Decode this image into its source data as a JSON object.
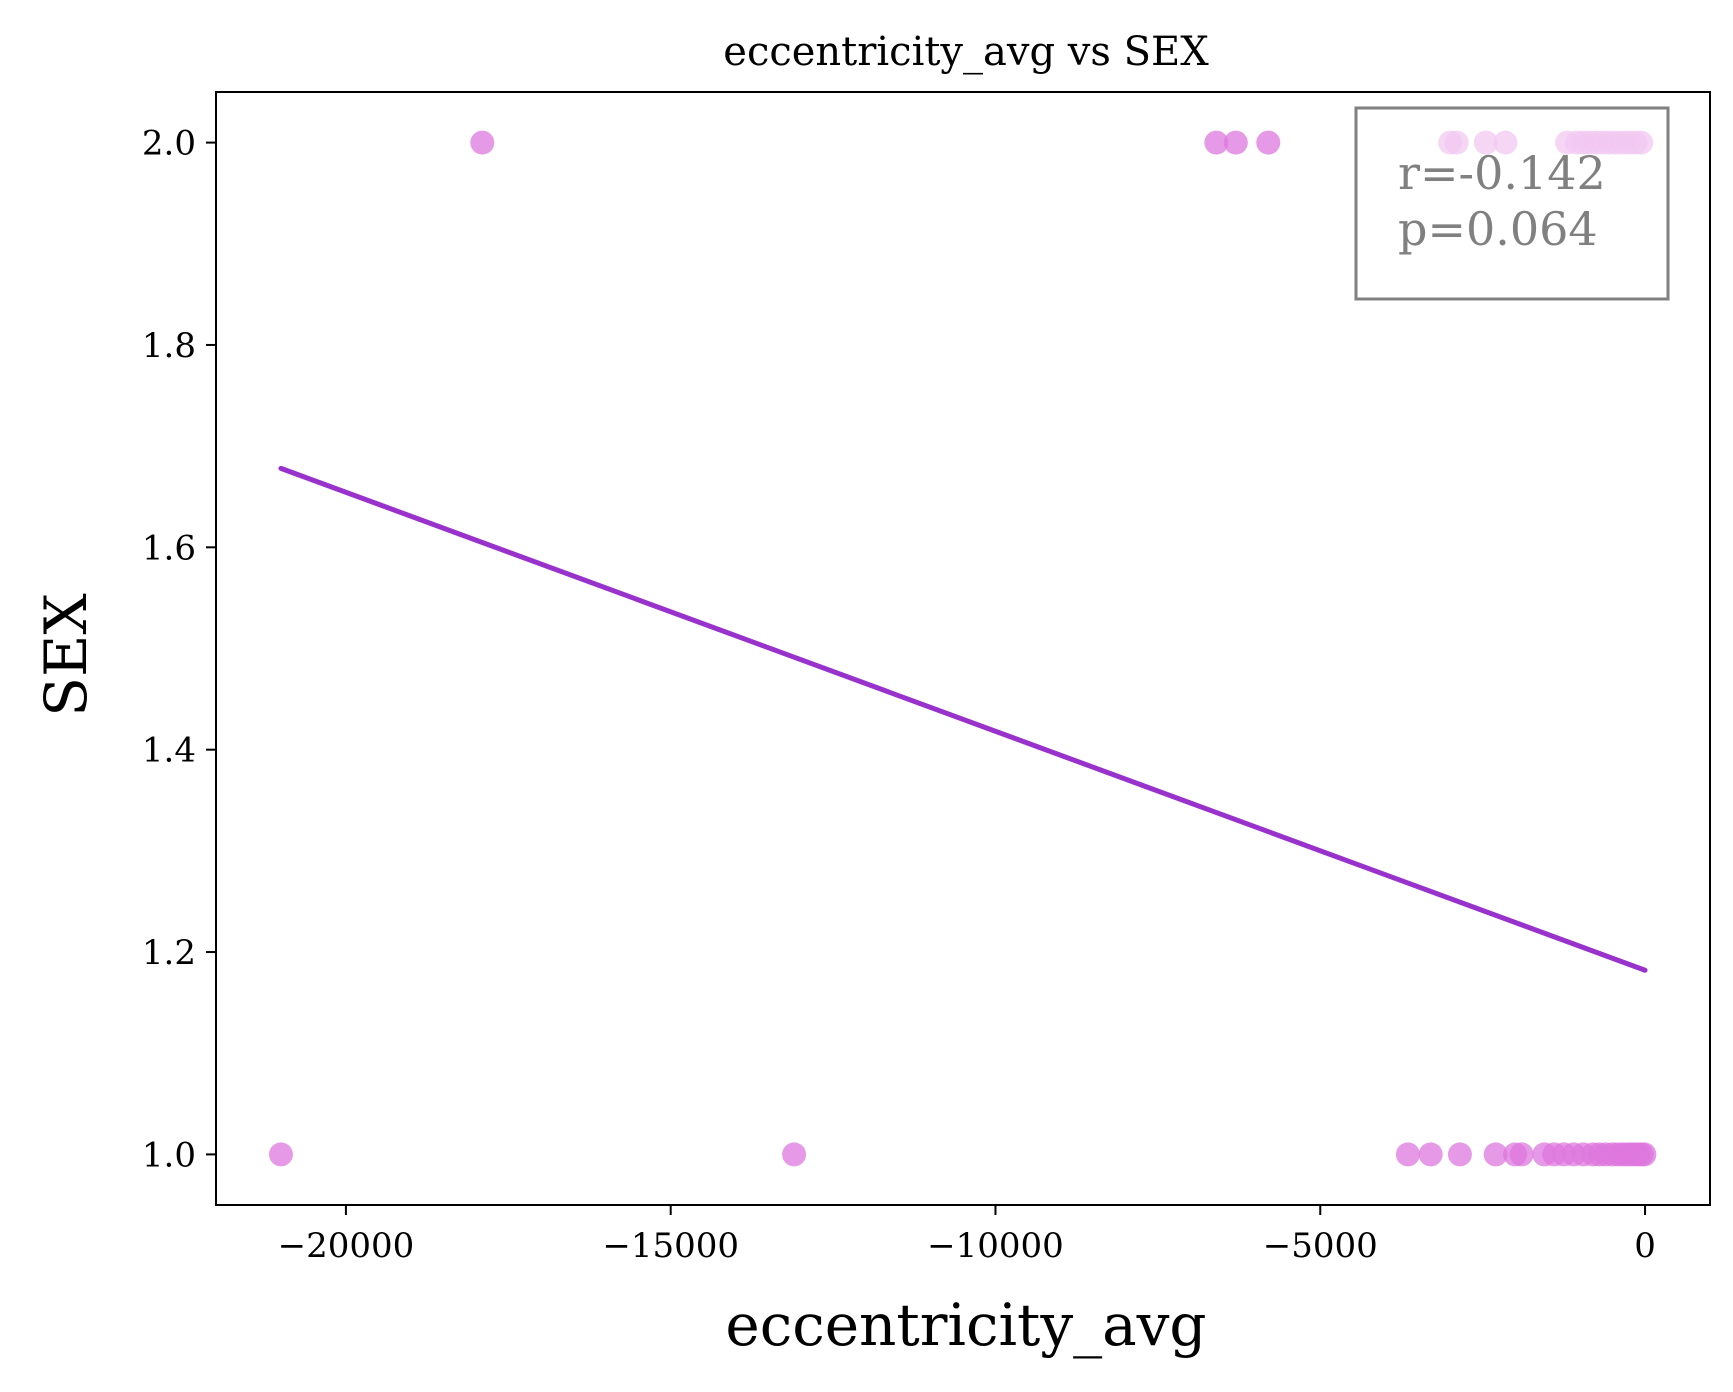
{
  "chart_data": {
    "type": "scatter",
    "title": "eccentricity_avg vs SEX",
    "xlabel": "eccentricity_avg",
    "ylabel": "SEX",
    "xlim": [
      -22000,
      1000
    ],
    "ylim": [
      0.95,
      2.05
    ],
    "x_ticks": [
      -20000,
      -15000,
      -10000,
      -5000,
      0
    ],
    "x_tick_labels": [
      "−20000",
      "−15000",
      "−10000",
      "−5000",
      "0"
    ],
    "y_ticks": [
      1.0,
      1.2,
      1.4,
      1.6,
      1.8,
      2.0
    ],
    "y_tick_labels": [
      "1.0",
      "1.2",
      "1.4",
      "1.6",
      "1.8",
      "2.0"
    ],
    "grid": false,
    "colors": {
      "points": "#dd77dd",
      "fit": "#9932cc",
      "stats_text": "#808080",
      "stats_border": "#808080",
      "axes": "#000000"
    },
    "points": [
      {
        "x": -21000,
        "y": 1
      },
      {
        "x": -13100,
        "y": 1
      },
      {
        "x": -3650,
        "y": 1
      },
      {
        "x": -3300,
        "y": 1
      },
      {
        "x": -2850,
        "y": 1
      },
      {
        "x": -2300,
        "y": 1
      },
      {
        "x": -2000,
        "y": 1
      },
      {
        "x": -1900,
        "y": 1
      },
      {
        "x": -1550,
        "y": 1
      },
      {
        "x": -1400,
        "y": 1
      },
      {
        "x": -1250,
        "y": 1
      },
      {
        "x": -1100,
        "y": 1
      },
      {
        "x": -950,
        "y": 1
      },
      {
        "x": -800,
        "y": 1
      },
      {
        "x": -700,
        "y": 1
      },
      {
        "x": -600,
        "y": 1
      },
      {
        "x": -500,
        "y": 1
      },
      {
        "x": -420,
        "y": 1
      },
      {
        "x": -350,
        "y": 1
      },
      {
        "x": -280,
        "y": 1
      },
      {
        "x": -220,
        "y": 1
      },
      {
        "x": -160,
        "y": 1
      },
      {
        "x": -100,
        "y": 1
      },
      {
        "x": -50,
        "y": 1
      },
      {
        "x": -10,
        "y": 1
      },
      {
        "x": -17900,
        "y": 2
      },
      {
        "x": -6600,
        "y": 2
      },
      {
        "x": -6300,
        "y": 2
      },
      {
        "x": -5800,
        "y": 2
      },
      {
        "x": -3000,
        "y": 2
      },
      {
        "x": -2900,
        "y": 2
      },
      {
        "x": -2450,
        "y": 2
      },
      {
        "x": -2150,
        "y": 2
      },
      {
        "x": -1200,
        "y": 2
      },
      {
        "x": -1050,
        "y": 2
      },
      {
        "x": -950,
        "y": 2
      },
      {
        "x": -850,
        "y": 2
      },
      {
        "x": -750,
        "y": 2
      },
      {
        "x": -650,
        "y": 2
      },
      {
        "x": -550,
        "y": 2
      },
      {
        "x": -450,
        "y": 2
      },
      {
        "x": -350,
        "y": 2
      },
      {
        "x": -250,
        "y": 2
      },
      {
        "x": -150,
        "y": 2
      },
      {
        "x": -60,
        "y": 2
      }
    ],
    "fit_line": {
      "x": [
        -21000,
        0
      ],
      "y": [
        1.678,
        1.182
      ]
    },
    "stats": {
      "r": "r=-0.142",
      "p": "p=0.064",
      "placement": "top-right"
    }
  }
}
